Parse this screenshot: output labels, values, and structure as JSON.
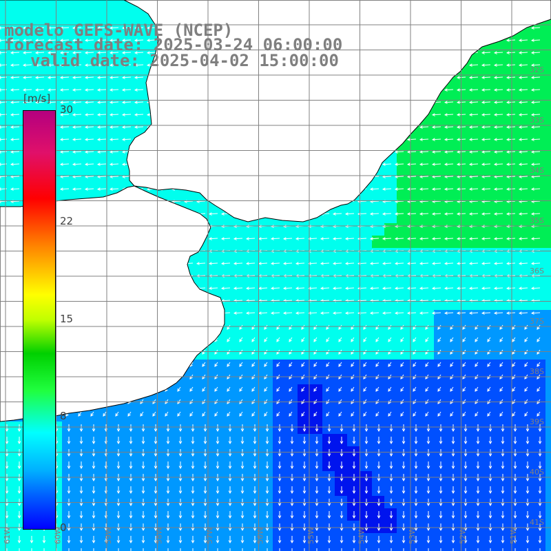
{
  "title": {
    "model": "modelo GEFS-WAVE (NCEP)",
    "forecast": "forecast date: 2025-03-24 06:00:00",
    "valid": "valid date: 2025-04-02 15:00:00"
  },
  "colorbar": {
    "unit": "[m/s]",
    "ticks": [
      {
        "label": "30",
        "value": 30
      },
      {
        "label": "22",
        "value": 22
      },
      {
        "label": "15",
        "value": 15
      },
      {
        "label": "8",
        "value": 8
      },
      {
        "label": "0",
        "value": 0
      }
    ],
    "scale_min": 0,
    "scale_max": 30,
    "colors": [
      "#0000ff",
      "#0060ff",
      "#00b0ff",
      "#00ffff",
      "#20ff40",
      "#00d000",
      "#c0ff00",
      "#ffff00",
      "#ff8000",
      "#ff0000",
      "#e0106a",
      "#b4007f"
    ]
  },
  "map": {
    "lat_labels": [
      "32S",
      "33S",
      "34S",
      "35S",
      "36S",
      "37S",
      "38S",
      "39S",
      "40S",
      "41S"
    ],
    "lon_labels": [
      "61W",
      "60W",
      "59W",
      "58W",
      "57W",
      "56W",
      "55W",
      "54W",
      "53W",
      "52W",
      "51W"
    ],
    "land_color": "#ffffff",
    "grid_color": "#808080",
    "coast_color": "#000000",
    "vector_color": "#ffffff",
    "wind_direction": "from east-northeast",
    "field_colors": {
      "strong": "#00ee55",
      "medium": "#00ffee",
      "moderate": "#0098ff",
      "weak": "#0050ff",
      "calm": "#0014ee"
    }
  }
}
